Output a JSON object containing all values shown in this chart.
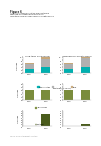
{
  "title": "Figure 6",
  "subtitle": "Increases in superannuation and healthcare spending are funded differently in the Long-term Fiscal and Neoclassical Growth models",
  "models": [
    "Long-term Fiscal Model",
    "Neoclassical Growth Model"
  ],
  "years": [
    "2025",
    "2055"
  ],
  "stacked_bars": {
    "ltf": {
      "superannuation": [
        2.5,
        4.0
      ],
      "healthcare": [
        3.5,
        5.0
      ],
      "other": [
        0.6,
        1.0
      ]
    },
    "ncg": {
      "superannuation": [
        2.5,
        4.0
      ],
      "healthcare": [
        3.5,
        5.5
      ],
      "other": [
        0.3,
        0.4
      ]
    }
  },
  "stacked_colors": [
    "#00b0b0",
    "#b0b0b0",
    "#c8a87a"
  ],
  "stacked_ylim": [
    0,
    10
  ],
  "stacked_ytick_labels": [
    "0",
    "2",
    "4",
    "6",
    "8",
    "10"
  ],
  "stacked_yticks": [
    0,
    2,
    4,
    6,
    8,
    10
  ],
  "tax_bars": {
    "ltf": [
      3.2,
      3.2
    ],
    "ncg": [
      3.2,
      3.2
    ]
  },
  "tax_color": "#7a8c3c",
  "tax_ylim": [
    0,
    5
  ],
  "tax_yticks": [
    0,
    1,
    2,
    3,
    4,
    5
  ],
  "debt_bars": {
    "ltf": [
      0.3,
      5.5
    ],
    "ncg": [
      0.3,
      1.2
    ]
  },
  "debt_color": "#4a5c1c",
  "debt_ylim": [
    0,
    7
  ],
  "debt_yticks": [
    0,
    1,
    2,
    3,
    4,
    5,
    6,
    7
  ],
  "ylabel": "% of GDP",
  "tax_legend": "Tax revenues",
  "debt_legend": "Net debt",
  "source": "Source: Office of the Budget Secretary",
  "legend_labels": [
    "Superannuation",
    "Healthcare (for old age)",
    "Other"
  ],
  "fig_bg": "#ffffff",
  "text_color": "#222222",
  "axis_color": "#999999"
}
